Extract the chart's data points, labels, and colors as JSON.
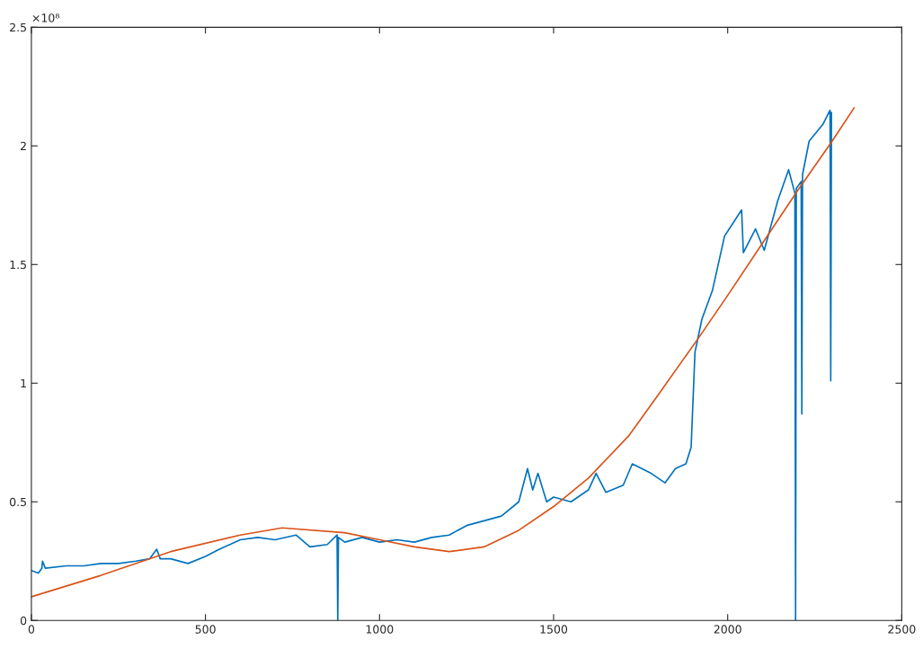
{
  "chart_data": {
    "type": "line",
    "xlim": [
      0,
      2500
    ],
    "ylim": [
      0,
      2.5
    ],
    "xticks": [
      0,
      500,
      1000,
      1500,
      2000,
      2500
    ],
    "yticks": [
      0,
      0.5,
      1,
      1.5,
      2,
      2.5
    ],
    "grid": false,
    "annotations": [
      "×10⁸"
    ],
    "series": [
      {
        "color": "#0072bd",
        "x": [
          0,
          20,
          30,
          32,
          40,
          100,
          150,
          200,
          250,
          300,
          340,
          360,
          370,
          400,
          450,
          500,
          540,
          600,
          650,
          700,
          760,
          800,
          850,
          878,
          880,
          882,
          900,
          950,
          1000,
          1050,
          1100,
          1150,
          1200,
          1250,
          1300,
          1350,
          1400,
          1425,
          1440,
          1455,
          1480,
          1500,
          1550,
          1600,
          1622,
          1650,
          1700,
          1726,
          1780,
          1820,
          1850,
          1880,
          1895,
          1906,
          1926,
          1956,
          1991,
          2040,
          2045,
          2080,
          2105,
          2144,
          2175,
          2193,
          2195,
          2197,
          2211,
          2213,
          2215,
          2234,
          2273,
          2294,
          2296,
          2298
        ],
        "values": [
          0.21,
          0.2,
          0.22,
          0.25,
          0.22,
          0.23,
          0.23,
          0.24,
          0.24,
          0.25,
          0.26,
          0.3,
          0.26,
          0.26,
          0.24,
          0.27,
          0.3,
          0.34,
          0.35,
          0.34,
          0.36,
          0.31,
          0.32,
          0.36,
          0,
          0.35,
          0.33,
          0.35,
          0.33,
          0.34,
          0.33,
          0.35,
          0.36,
          0.4,
          0.42,
          0.44,
          0.5,
          0.64,
          0.55,
          0.62,
          0.5,
          0.52,
          0.5,
          0.55,
          0.62,
          0.54,
          0.57,
          0.66,
          0.62,
          0.58,
          0.64,
          0.66,
          0.73,
          1.13,
          1.27,
          1.39,
          1.62,
          1.73,
          1.55,
          1.65,
          1.56,
          1.77,
          1.9,
          1.8,
          0,
          1.82,
          1.85,
          0.87,
          1.88,
          2.02,
          2.09,
          2.15,
          1.01,
          2.14
        ]
      },
      {
        "color": "#d95319",
        "x": [
          0,
          200,
          400,
          600,
          720,
          900,
          1000,
          1100,
          1200,
          1300,
          1400,
          1500,
          1600,
          1717,
          1800,
          1916,
          2000,
          2100,
          2200,
          2300,
          2363
        ],
        "values": [
          0.1,
          0.19,
          0.29,
          0.36,
          0.39,
          0.37,
          0.34,
          0.31,
          0.29,
          0.31,
          0.38,
          0.48,
          0.6,
          0.78,
          0.95,
          1.19,
          1.37,
          1.59,
          1.81,
          2.02,
          2.16
        ]
      }
    ]
  }
}
